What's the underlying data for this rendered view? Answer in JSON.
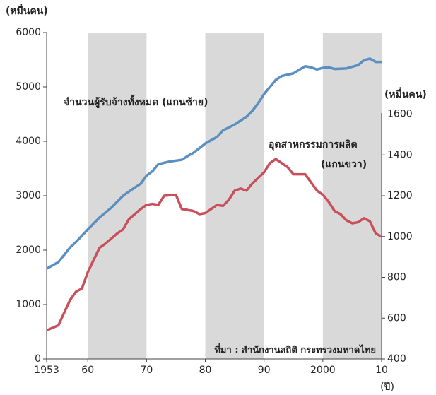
{
  "chart_data": {
    "type": "line",
    "y_unit_label": "(หมื่นคน)",
    "y2_unit_label": "(หมื่นคน)",
    "x_unit_label": "(ปี)",
    "annotations": [
      "จำนวนผู้รับจ้างทั้งหมด (แกนซ้าย)",
      "อุตสาหกรรมการผลิต",
      "(แกนขวา)"
    ],
    "source": "ที่มา : สำนักงานสถิติ กระทรวงมหาดไทย",
    "xlim": [
      1953,
      2010
    ],
    "xticks": [
      1953,
      {
        "value": 1960,
        "label": "60"
      },
      {
        "value": 1970,
        "label": "70"
      },
      {
        "value": 1980,
        "label": "80"
      },
      {
        "value": 1990,
        "label": "90"
      },
      2000,
      {
        "value": 2010,
        "label": "10"
      }
    ],
    "ylim": [
      0,
      6000
    ],
    "yticks": [
      0,
      1000,
      2000,
      3000,
      4000,
      5000,
      6000
    ],
    "y2lim": [
      400,
      2000
    ],
    "y2ticks": [
      400,
      600,
      800,
      1000,
      1200,
      1400,
      1600
    ],
    "shaded_ranges": [
      [
        1960,
        1970
      ],
      [
        1980,
        1990
      ],
      [
        2000,
        2010
      ]
    ],
    "shade_color": "#d9d9d9",
    "series": [
      {
        "name": "จำนวนผู้รับจ้างทั้งหมด",
        "color": "#5b8fc0",
        "x": [
          1953,
          1955,
          1957,
          1958,
          1960,
          1962,
          1964,
          1966,
          1968,
          1969,
          1970,
          1971,
          1972,
          1974,
          1976,
          1977,
          1978,
          1980,
          1982,
          1983,
          1985,
          1987,
          1988,
          1989,
          1990,
          1991,
          1992,
          1993,
          1995,
          1997,
          1998,
          1999,
          2000,
          2001,
          2002,
          2004,
          2006,
          2007,
          2008,
          2009,
          2010
        ],
        "values": [
          1660,
          1780,
          2050,
          2150,
          2380,
          2600,
          2780,
          3000,
          3150,
          3220,
          3370,
          3450,
          3580,
          3630,
          3660,
          3730,
          3790,
          3960,
          4080,
          4200,
          4310,
          4450,
          4560,
          4700,
          4870,
          5000,
          5130,
          5200,
          5250,
          5380,
          5360,
          5320,
          5350,
          5360,
          5330,
          5340,
          5400,
          5490,
          5520,
          5460,
          5460
        ]
      },
      {
        "name": "อุตสาหกรรมการผลิต",
        "color": "#c8505a",
        "axis": "y2",
        "x": [
          1953,
          1955,
          1957,
          1958,
          1959,
          1960,
          1962,
          1963,
          1965,
          1966,
          1967,
          1969,
          1970,
          1971,
          1972,
          1973,
          1975,
          1976,
          1978,
          1979,
          1980,
          1982,
          1983,
          1984,
          1985,
          1986,
          1987,
          1988,
          1990,
          1991,
          1992,
          1993,
          1994,
          1995,
          1997,
          1998,
          1999,
          2000,
          2001,
          2002,
          2003,
          2004,
          2005,
          2006,
          2007,
          2008,
          2009,
          2010
        ],
        "values": [
          540,
          565,
          690,
          730,
          745,
          825,
          945,
          965,
          1015,
          1035,
          1085,
          1135,
          1155,
          1160,
          1155,
          1200,
          1205,
          1135,
          1125,
          1110,
          1115,
          1155,
          1150,
          1180,
          1225,
          1235,
          1225,
          1260,
          1315,
          1360,
          1380,
          1360,
          1340,
          1305,
          1305,
          1265,
          1225,
          1205,
          1170,
          1125,
          1110,
          1080,
          1065,
          1070,
          1090,
          1075,
          1015,
          1000
        ]
      }
    ]
  }
}
